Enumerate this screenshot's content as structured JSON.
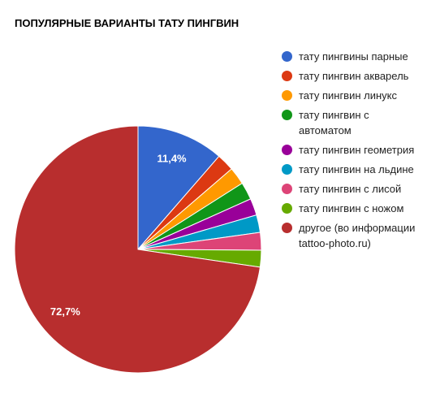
{
  "chart_data": {
    "type": "pie",
    "title": "ПОПУЛЯРНЫЕ ВАРИАНТЫ ТАТУ ПИНГВИН",
    "categories": [
      "тату пингвины парные",
      "тату пингвин акварель",
      "тату пингвин линукс",
      "тату пингвин с автоматом",
      "тату пингвин геометрия",
      "тату пингвин на льдине",
      "тату пингвин с лисой",
      "тату пингвин с ножом",
      "другое (во информации tattoo-photo.ru)"
    ],
    "values": [
      11.4,
      2.3,
      2.3,
      2.3,
      2.2,
      2.3,
      2.3,
      2.2,
      72.7
    ],
    "value_labels": [
      "11,4%",
      null,
      null,
      null,
      null,
      null,
      null,
      null,
      "72,7%"
    ],
    "colors": [
      "#3366cc",
      "#dc3912",
      "#ff9900",
      "#109618",
      "#990099",
      "#0099c6",
      "#dd4477",
      "#66aa00",
      "#b82e2e"
    ],
    "legend": "right"
  }
}
